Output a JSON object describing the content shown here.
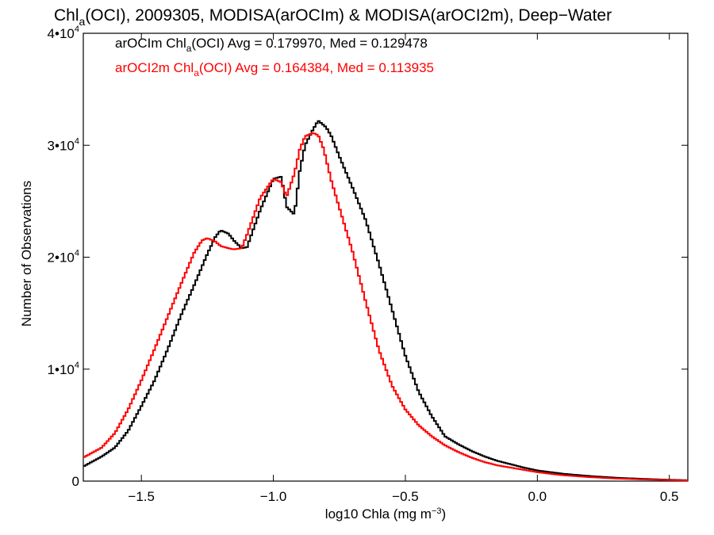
{
  "chart_data": {
    "type": "line",
    "title_parts": {
      "pre": "Chl",
      "sub": "a",
      "post": "(OCI), 2009305, MODISA(arOCIm) & MODISA(arOCI2m), Deep−Water"
    },
    "xlabel_parts": {
      "pre": "log10 Chla (mg m",
      "sup": "−3",
      "post": ")"
    },
    "ylabel": "Number of Observations",
    "xlim": [
      -1.72,
      0.57
    ],
    "ylim": [
      0,
      40000
    ],
    "x_ticks": [
      {
        "value": -1.5,
        "label": "−1.5"
      },
      {
        "value": -1.0,
        "label": "−1.0"
      },
      {
        "value": -0.5,
        "label": "−0.5"
      },
      {
        "value": 0.0,
        "label": "0.0"
      },
      {
        "value": 0.5,
        "label": "0.5"
      }
    ],
    "y_ticks": [
      {
        "value": 0,
        "base": "0",
        "exp": ""
      },
      {
        "value": 10000,
        "base": "1•10",
        "exp": "4"
      },
      {
        "value": 20000,
        "base": "2•10",
        "exp": "4"
      },
      {
        "value": 30000,
        "base": "3•10",
        "exp": "4"
      },
      {
        "value": 40000,
        "base": "4•10",
        "exp": "4"
      }
    ],
    "grid": false,
    "legend_position": "top-left",
    "series": [
      {
        "name": "arOCIm",
        "color": "#000000",
        "legend_parts": {
          "pre": "arOCIm Chl",
          "sub": "a",
          "post": "(OCI) Avg = 0.179970, Med = 0.129478"
        },
        "x": [
          -1.72,
          -1.65,
          -1.6,
          -1.55,
          -1.5,
          -1.45,
          -1.4,
          -1.35,
          -1.3,
          -1.25,
          -1.22,
          -1.2,
          -1.17,
          -1.15,
          -1.12,
          -1.1,
          -1.05,
          -1.0,
          -0.97,
          -0.95,
          -0.92,
          -0.9,
          -0.88,
          -0.85,
          -0.83,
          -0.81,
          -0.8,
          -0.78,
          -0.75,
          -0.7,
          -0.65,
          -0.6,
          -0.55,
          -0.5,
          -0.45,
          -0.4,
          -0.35,
          -0.3,
          -0.25,
          -0.2,
          -0.15,
          -0.1,
          -0.05,
          0.0,
          0.05,
          0.1,
          0.2,
          0.3,
          0.4,
          0.5,
          0.57
        ],
        "y": [
          1300,
          2200,
          3000,
          4500,
          6700,
          9000,
          11800,
          14800,
          17500,
          20300,
          21800,
          22400,
          22100,
          21500,
          20800,
          20900,
          24200,
          27000,
          27200,
          24500,
          23800,
          27700,
          30000,
          31400,
          32200,
          31800,
          31600,
          30800,
          29000,
          26200,
          23300,
          19400,
          15300,
          11200,
          8000,
          5800,
          4000,
          3300,
          2700,
          2200,
          1800,
          1500,
          1200,
          950,
          800,
          650,
          450,
          300,
          200,
          120,
          80
        ]
      },
      {
        "name": "arOCI2m",
        "color": "#ff0000",
        "legend_parts": {
          "pre": "arOCI2m Chl",
          "sub": "a",
          "post": "(OCI) Avg = 0.164384, Med = 0.113935"
        },
        "x": [
          -1.72,
          -1.65,
          -1.6,
          -1.55,
          -1.5,
          -1.45,
          -1.4,
          -1.35,
          -1.3,
          -1.27,
          -1.25,
          -1.22,
          -1.2,
          -1.17,
          -1.15,
          -1.12,
          -1.1,
          -1.05,
          -1.0,
          -0.97,
          -0.95,
          -0.92,
          -0.9,
          -0.88,
          -0.85,
          -0.83,
          -0.81,
          -0.78,
          -0.75,
          -0.7,
          -0.65,
          -0.6,
          -0.55,
          -0.5,
          -0.45,
          -0.4,
          -0.35,
          -0.3,
          -0.25,
          -0.2,
          -0.15,
          -0.1,
          -0.05,
          0.0,
          0.05,
          0.1,
          0.2,
          0.3,
          0.4,
          0.5,
          0.57
        ],
        "y": [
          2100,
          3000,
          4300,
          6400,
          9000,
          11800,
          14700,
          17600,
          20400,
          21500,
          21700,
          21400,
          21000,
          20800,
          20700,
          20800,
          22000,
          25300,
          27000,
          26700,
          25400,
          27500,
          29600,
          30800,
          31100,
          30900,
          29700,
          26800,
          24400,
          20500,
          16000,
          11700,
          8500,
          6400,
          5000,
          4000,
          3200,
          2600,
          2100,
          1700,
          1400,
          1200,
          1000,
          800,
          650,
          520,
          350,
          230,
          150,
          90,
          60
        ]
      }
    ]
  }
}
